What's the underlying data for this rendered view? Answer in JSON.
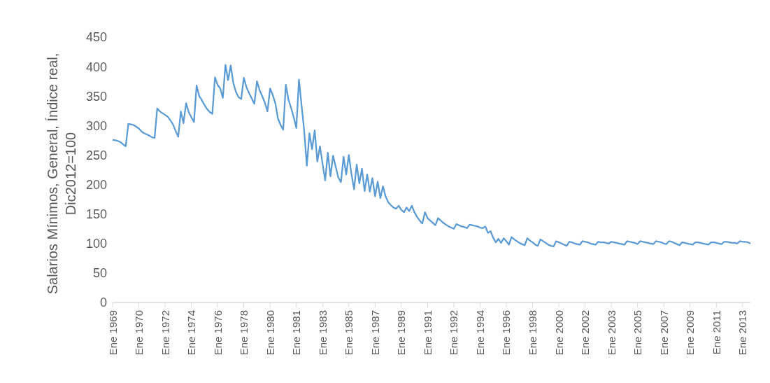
{
  "chart_data": {
    "type": "line",
    "ylabel": "Salarios Mínimos, General, Índice real, Dic2012=100",
    "categories": [
      "Ene 1969",
      null,
      null,
      null,
      null,
      null,
      null,
      null,
      null,
      null,
      "Ene 1970",
      null,
      null,
      null,
      null,
      null,
      null,
      null,
      null,
      null,
      "Ene 1972",
      null,
      null,
      null,
      null,
      null,
      null,
      null,
      null,
      null,
      "Ene 1974",
      null,
      null,
      null,
      null,
      null,
      null,
      null,
      null,
      null,
      "Ene 1976",
      null,
      null,
      null,
      null,
      null,
      null,
      null,
      null,
      null,
      "Ene 1978",
      null,
      null,
      null,
      null,
      null,
      null,
      null,
      null,
      null,
      "Ene 1980",
      null,
      null,
      null,
      null,
      null,
      null,
      null,
      null,
      null,
      "Ene 1981",
      null,
      null,
      null,
      null,
      null,
      null,
      null,
      null,
      null,
      "Ene 1983",
      null,
      null,
      null,
      null,
      null,
      null,
      null,
      null,
      null,
      "Ene 1985",
      null,
      null,
      null,
      null,
      null,
      null,
      null,
      null,
      null,
      "Ene 1987",
      null,
      null,
      null,
      null,
      null,
      null,
      null,
      null,
      null,
      "Ene 1989",
      null,
      null,
      null,
      null,
      null,
      null,
      null,
      null,
      null,
      "Ene 1991",
      null,
      null,
      null,
      null,
      null,
      null,
      null,
      null,
      null,
      "Ene 1992",
      null,
      null,
      null,
      null,
      null,
      null,
      null,
      null,
      null,
      "Ene 1994",
      null,
      null,
      null,
      null,
      null,
      null,
      null,
      null,
      null,
      "Ene 1996",
      null,
      null,
      null,
      null,
      null,
      null,
      null,
      null,
      null,
      "Ene 1998",
      null,
      null,
      null,
      null,
      null,
      null,
      null,
      null,
      null,
      "Ene 2000",
      null,
      null,
      null,
      null,
      null,
      null,
      null,
      null,
      null,
      "Ene 2002",
      null,
      null,
      null,
      null,
      null,
      null,
      null,
      null,
      null,
      "Ene 2003",
      null,
      null,
      null,
      null,
      null,
      null,
      null,
      null,
      null,
      "Ene 2005",
      null,
      null,
      null,
      null,
      null,
      null,
      null,
      null,
      null,
      "Ene 2007",
      null,
      null,
      null,
      null,
      null,
      null,
      null,
      null,
      null,
      "Ene 2009",
      null,
      null,
      null,
      null,
      null,
      null,
      null,
      null,
      null,
      "Ene 2011",
      null,
      null,
      null,
      null,
      null,
      null,
      null,
      null,
      null,
      "Ene 2013",
      null,
      null,
      null
    ],
    "series": [
      {
        "color": "#5b9bd5",
        "values": [
          276,
          275,
          274,
          272,
          268,
          265,
          303,
          302,
          301,
          298,
          295,
          290,
          287,
          285,
          283,
          280,
          279,
          329,
          324,
          321,
          318,
          315,
          309,
          302,
          291,
          281,
          324,
          304,
          338,
          323,
          314,
          306,
          368,
          350,
          343,
          335,
          328,
          323,
          320,
          382,
          369,
          363,
          347,
          403,
          377,
          402,
          372,
          357,
          348,
          345,
          381,
          365,
          355,
          346,
          337,
          375,
          360,
          350,
          339,
          324,
          363,
          352,
          338,
          312,
          301,
          293,
          369,
          344,
          330,
          314,
          296,
          378,
          334,
          291,
          232,
          287,
          260,
          292,
          239,
          265,
          235,
          207,
          254,
          214,
          249,
          230,
          212,
          204,
          247,
          217,
          250,
          218,
          192,
          234,
          202,
          227,
          189,
          217,
          188,
          211,
          180,
          205,
          177,
          197,
          180,
          170,
          165,
          161,
          159,
          164,
          157,
          153,
          161,
          155,
          164,
          153,
          145,
          139,
          134,
          153,
          143,
          139,
          135,
          131,
          143,
          139,
          135,
          132,
          129,
          127,
          125,
          133,
          131,
          129,
          128,
          126,
          132,
          131,
          130,
          129,
          127,
          126,
          129,
          118,
          121,
          110,
          102,
          108,
          101,
          109,
          104,
          98,
          111,
          107,
          104,
          101,
          99,
          97,
          109,
          105,
          102,
          98,
          96,
          107,
          104,
          101,
          98,
          96,
          95,
          104,
          102,
          100,
          98,
          96,
          103,
          102,
          100,
          99,
          98,
          104,
          103,
          102,
          100,
          99,
          98,
          103,
          102,
          102,
          101,
          100,
          103,
          102,
          101,
          100,
          99,
          98,
          104,
          103,
          102,
          101,
          99,
          104,
          103,
          102,
          101,
          100,
          99,
          104,
          103,
          102,
          100,
          99,
          104,
          103,
          101,
          99,
          97,
          102,
          101,
          100,
          99,
          98,
          102,
          102,
          101,
          100,
          99,
          98,
          102,
          102,
          101,
          100,
          99,
          103,
          103,
          102,
          101,
          101,
          100,
          104,
          103,
          103,
          102,
          100
        ]
      }
    ],
    "ylim": [
      0,
      450
    ],
    "yticks": [
      0,
      50,
      100,
      150,
      200,
      250,
      300,
      350,
      400,
      450
    ]
  }
}
